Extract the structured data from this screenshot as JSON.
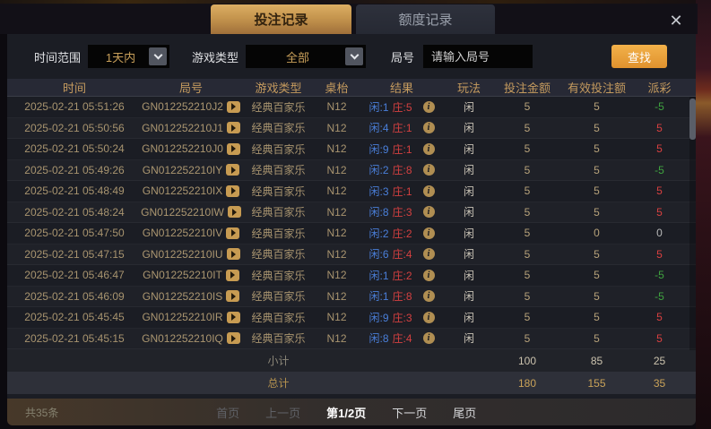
{
  "window": {
    "close_icon": "✕"
  },
  "tabs": [
    {
      "label": "投注记录",
      "active": true
    },
    {
      "label": "额度记录",
      "active": false
    }
  ],
  "filters": {
    "time_range_label": "时间范围",
    "time_range_value": "1天内",
    "game_type_label": "游戏类型",
    "game_type_value": "全部",
    "round_label": "局号",
    "round_placeholder": "请输入局号",
    "search_button": "查找"
  },
  "table": {
    "headers": {
      "time": "时间",
      "round": "局号",
      "game": "游戏类型",
      "table": "桌枱",
      "result": "结果",
      "play": "玩法",
      "bet": "投注金额",
      "valid": "有效投注额",
      "payout": "派彩"
    },
    "rows": [
      {
        "time": "2025-02-21 05:51:26",
        "round": "GN012252210J2",
        "game": "经典百家乐",
        "table": "N12",
        "result_player": "闲:1",
        "result_banker": "庄:5",
        "play": "闲",
        "bet": "5",
        "valid": "5",
        "payout": "-5",
        "payout_color": "green"
      },
      {
        "time": "2025-02-21 05:50:56",
        "round": "GN012252210J1",
        "game": "经典百家乐",
        "table": "N12",
        "result_player": "闲:4",
        "result_banker": "庄:1",
        "play": "闲",
        "bet": "5",
        "valid": "5",
        "payout": "5",
        "payout_color": "red"
      },
      {
        "time": "2025-02-21 05:50:24",
        "round": "GN012252210J0",
        "game": "经典百家乐",
        "table": "N12",
        "result_player": "闲:9",
        "result_banker": "庄:1",
        "play": "闲",
        "bet": "5",
        "valid": "5",
        "payout": "5",
        "payout_color": "red"
      },
      {
        "time": "2025-02-21 05:49:26",
        "round": "GN012252210IY",
        "game": "经典百家乐",
        "table": "N12",
        "result_player": "闲:2",
        "result_banker": "庄:8",
        "play": "闲",
        "bet": "5",
        "valid": "5",
        "payout": "-5",
        "payout_color": "green"
      },
      {
        "time": "2025-02-21 05:48:49",
        "round": "GN012252210IX",
        "game": "经典百家乐",
        "table": "N12",
        "result_player": "闲:3",
        "result_banker": "庄:1",
        "play": "闲",
        "bet": "5",
        "valid": "5",
        "payout": "5",
        "payout_color": "red"
      },
      {
        "time": "2025-02-21 05:48:24",
        "round": "GN012252210IW",
        "game": "经典百家乐",
        "table": "N12",
        "result_player": "闲:8",
        "result_banker": "庄:3",
        "play": "闲",
        "bet": "5",
        "valid": "5",
        "payout": "5",
        "payout_color": "red"
      },
      {
        "time": "2025-02-21 05:47:50",
        "round": "GN012252210IV",
        "game": "经典百家乐",
        "table": "N12",
        "result_player": "闲:2",
        "result_banker": "庄:2",
        "play": "闲",
        "bet": "5",
        "valid": "0",
        "payout": "0",
        "payout_color": "gray"
      },
      {
        "time": "2025-02-21 05:47:15",
        "round": "GN012252210IU",
        "game": "经典百家乐",
        "table": "N12",
        "result_player": "闲:6",
        "result_banker": "庄:4",
        "play": "闲",
        "bet": "5",
        "valid": "5",
        "payout": "5",
        "payout_color": "red"
      },
      {
        "time": "2025-02-21 05:46:47",
        "round": "GN012252210IT",
        "game": "经典百家乐",
        "table": "N12",
        "result_player": "闲:1",
        "result_banker": "庄:2",
        "play": "闲",
        "bet": "5",
        "valid": "5",
        "payout": "-5",
        "payout_color": "green"
      },
      {
        "time": "2025-02-21 05:46:09",
        "round": "GN012252210IS",
        "game": "经典百家乐",
        "table": "N12",
        "result_player": "闲:1",
        "result_banker": "庄:8",
        "play": "闲",
        "bet": "5",
        "valid": "5",
        "payout": "-5",
        "payout_color": "green"
      },
      {
        "time": "2025-02-21 05:45:45",
        "round": "GN012252210IR",
        "game": "经典百家乐",
        "table": "N12",
        "result_player": "闲:9",
        "result_banker": "庄:3",
        "play": "闲",
        "bet": "5",
        "valid": "5",
        "payout": "5",
        "payout_color": "red"
      },
      {
        "time": "2025-02-21 05:45:15",
        "round": "GN012252210IQ",
        "game": "经典百家乐",
        "table": "N12",
        "result_player": "闲:8",
        "result_banker": "庄:4",
        "play": "闲",
        "bet": "5",
        "valid": "5",
        "payout": "5",
        "payout_color": "red"
      }
    ],
    "subtotal": {
      "label": "小计",
      "bet": "100",
      "valid": "85",
      "payout": "25"
    },
    "total": {
      "label": "总计",
      "bet": "180",
      "valid": "155",
      "payout": "35"
    }
  },
  "footer": {
    "total_count": "共35条",
    "pager": [
      {
        "name": "first",
        "label": "首页",
        "state": "disabled"
      },
      {
        "name": "prev",
        "label": "上一页",
        "state": "disabled"
      },
      {
        "name": "current",
        "label": "第1/2页",
        "state": "current"
      },
      {
        "name": "next",
        "label": "下一页",
        "state": "normal"
      },
      {
        "name": "last",
        "label": "尾页",
        "state": "normal"
      }
    ]
  },
  "colors": {
    "accent_gold": "#c49a5e",
    "tab_active_gradient_top": "#dcae63",
    "tab_active_gradient_bottom": "#a0703a",
    "search_button_orange": "#e9a63c",
    "player_blue": "#4a7fd9",
    "banker_red": "#d44040",
    "payout_red": "#d94040",
    "payout_green": "#3fa33f"
  }
}
